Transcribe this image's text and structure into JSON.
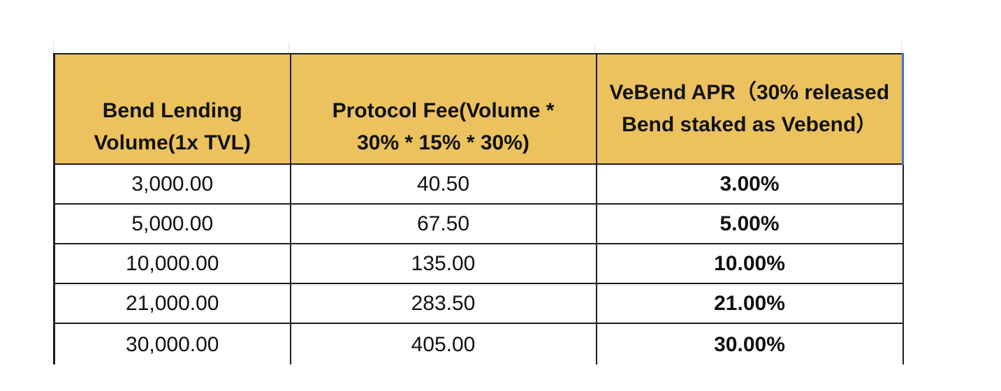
{
  "table": {
    "headers": [
      "Bend Lending Volume(1x TVL)",
      "Protocol Fee(Volume * 30% * 15% * 30%)",
      "VeBend APR（30% released Bend staked as Vebend）"
    ],
    "rows": [
      [
        "3,000.00",
        "40.50",
        "3.00%"
      ],
      [
        "5,000.00",
        "67.50",
        "5.00%"
      ],
      [
        "10,000.00",
        "135.00",
        "10.00%"
      ],
      [
        "21,000.00",
        "283.50",
        "21.00%"
      ],
      [
        "30,000.00",
        "405.00",
        "30.00%"
      ]
    ]
  },
  "colors": {
    "header_fill": "#ecc25f",
    "border": "#1f1f1f",
    "selection_edge": "#3f6fd8"
  }
}
